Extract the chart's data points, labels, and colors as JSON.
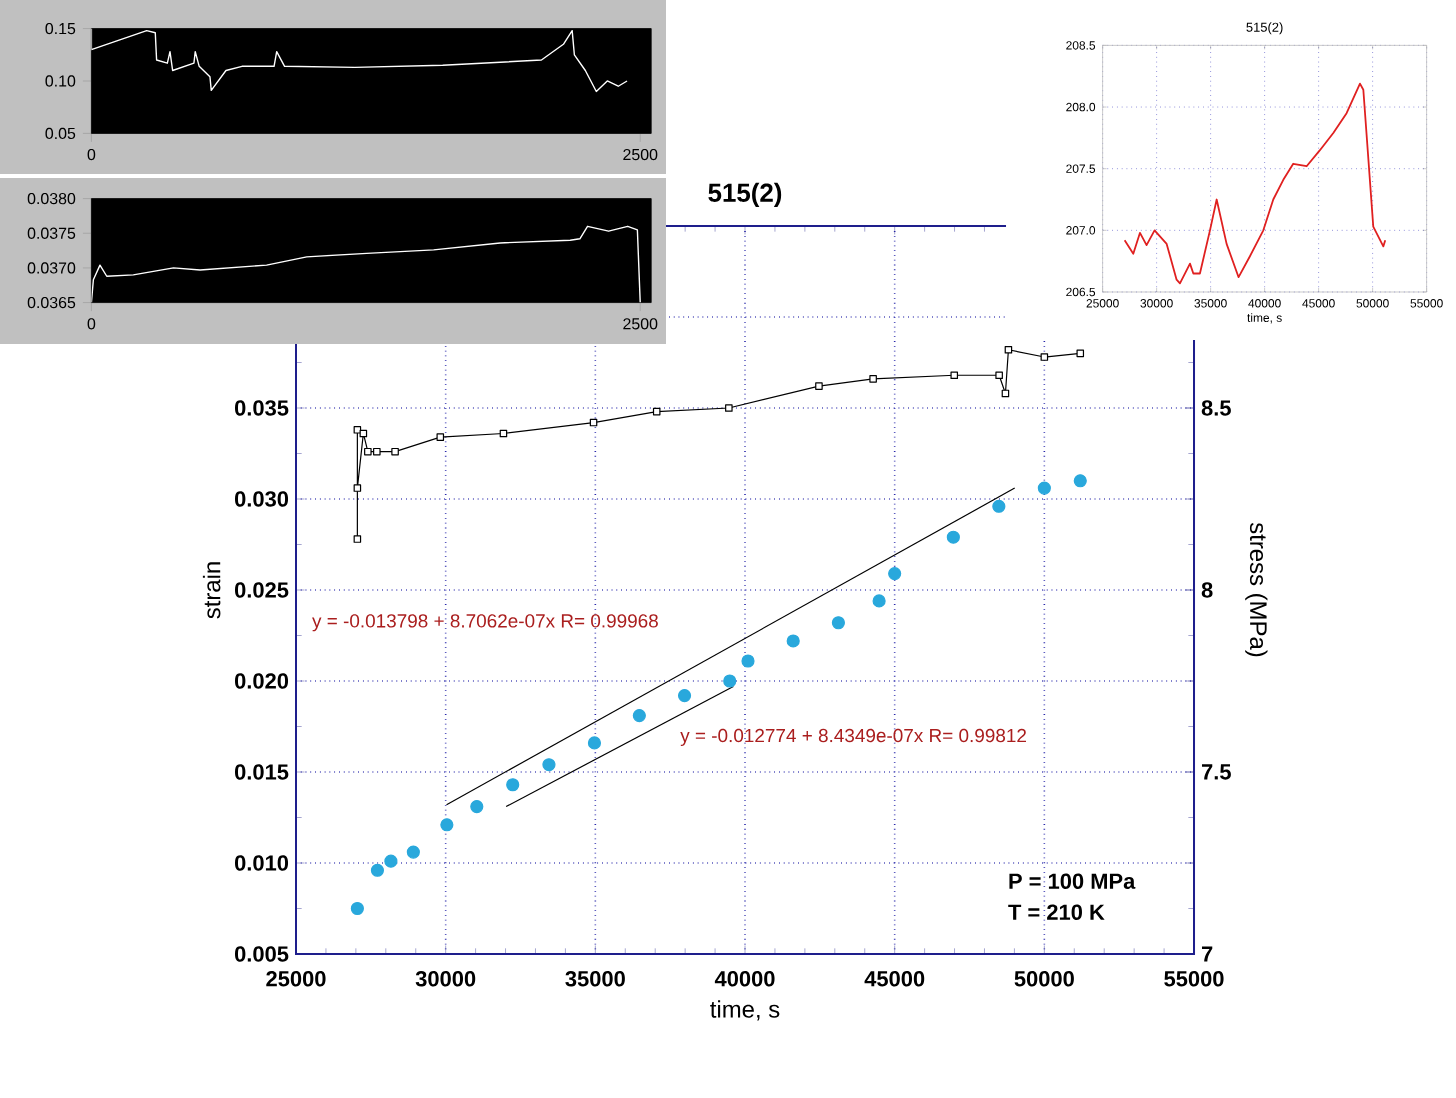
{
  "chart_data": [
    {
      "type": "line",
      "title": "515(2)",
      "xlabel": "time, s",
      "ylabel": "strain",
      "y2label": "stress (MPa)",
      "xlim": [
        25000,
        55000
      ],
      "xticks": [
        25000,
        30000,
        35000,
        40000,
        45000,
        50000,
        55000
      ],
      "ylim": [
        0.005,
        0.045
      ],
      "yticks": [
        0.005,
        {
          "value": 0.01,
          "label": "0.010"
        },
        0.015,
        {
          "value": 0.02,
          "label": "0.020"
        },
        0.025,
        {
          "value": 0.03,
          "label": "0.030"
        },
        0.035,
        {
          "value": 0.04,
          "label": null
        },
        {
          "value": 0.045,
          "label": null
        }
      ],
      "y2lim": [
        7,
        9
      ],
      "y2ticks": [
        7,
        7.5,
        8,
        8.5,
        {
          "value": 9,
          "label": null
        }
      ],
      "grid": true,
      "series": [
        {
          "type": "line",
          "axis": "y2",
          "marker": "square",
          "color": "#000000",
          "x": [
            27050,
            27050,
            27050,
            27250,
            27400,
            27700,
            28310,
            29820,
            31930,
            34940,
            37050,
            39460,
            42470,
            44280,
            46990,
            48490,
            48700,
            48800,
            50000,
            51200
          ],
          "values": [
            8.44,
            8.14,
            8.28,
            8.43,
            8.38,
            8.38,
            8.38,
            8.42,
            8.43,
            8.46,
            8.49,
            8.5,
            8.56,
            8.58,
            8.59,
            8.59,
            8.54,
            8.66,
            8.64,
            8.65
          ]
        },
        {
          "type": "scatter",
          "marker": "circle",
          "color": "#29a8dc",
          "x": [
            27050,
            27720,
            28170,
            28920,
            30040,
            31040,
            32240,
            33450,
            34970,
            36470,
            37980,
            39490,
            40100,
            41610,
            43120,
            44480,
            45000,
            46960,
            48480,
            50000,
            51200
          ],
          "values": [
            0.0075,
            0.0096,
            0.0101,
            0.0106,
            0.0121,
            0.0131,
            0.0143,
            0.0154,
            0.0166,
            0.0181,
            0.0192,
            0.02,
            0.0211,
            0.0222,
            0.0232,
            0.0244,
            0.0259,
            0.0279,
            0.0296,
            0.0306,
            0.031
          ]
        },
        {
          "type": "line",
          "color": "#000000",
          "x": [
            30030,
            49010
          ],
          "values": [
            0.0132,
            0.0306
          ]
        },
        {
          "type": "line",
          "color": "#000000",
          "x": [
            32020,
            39610
          ],
          "values": [
            0.0131,
            0.0197
          ]
        }
      ],
      "annotations": [
        "y = -0.013798 + 8.7062e-07x   R= 0.99968",
        "y = -0.012774 + 8.4349e-07x   R= 0.99812",
        "P = 100 MPa",
        "T = 210 K"
      ]
    },
    {
      "type": "line",
      "xlim": [
        0,
        2550
      ],
      "xticks": [
        0,
        2500
      ],
      "ylim": [
        0.05,
        0.15
      ],
      "yticks": [
        0.05,
        {
          "value": 0.1,
          "label": "0.10"
        },
        0.15
      ],
      "series": [
        {
          "color": "#ffffff",
          "x": [
            0,
            0,
            252,
            291,
            297,
            346,
            358,
            370,
            467,
            473,
            491,
            540,
            546,
            613,
            686,
            832,
            844,
            880,
            1200,
            1600,
            2050,
            2150,
            2190,
            2200,
            2250,
            2300,
            2350,
            2400,
            2440
          ],
          "values": [
            0.15,
            0.13,
            0.148,
            0.146,
            0.12,
            0.117,
            0.128,
            0.11,
            0.117,
            0.128,
            0.114,
            0.104,
            0.091,
            0.11,
            0.114,
            0.114,
            0.128,
            0.114,
            0.113,
            0.115,
            0.12,
            0.135,
            0.148,
            0.125,
            0.11,
            0.09,
            0.1,
            0.095,
            0.1
          ]
        }
      ]
    },
    {
      "type": "line",
      "xlim": [
        0,
        2550
      ],
      "xticks": [
        0,
        2500
      ],
      "ylim": [
        0.0365,
        0.038
      ],
      "yticks": [
        0.0365,
        {
          "value": 0.037,
          "label": "0.0370"
        },
        0.0375,
        {
          "value": 0.038,
          "label": "0.0380"
        }
      ],
      "series": [
        {
          "color": "#ffffff",
          "x": [
            0,
            9,
            39,
            70,
            191,
            374,
            495,
            798,
            981,
            1254,
            1559,
            1862,
            2181,
            2225,
            2260,
            2356,
            2443,
            2487,
            2500
          ],
          "values": [
            0.0365,
            0.03683,
            0.03704,
            0.03688,
            0.0369,
            0.037,
            0.03697,
            0.03704,
            0.03716,
            0.03721,
            0.03726,
            0.03736,
            0.0374,
            0.03742,
            0.0376,
            0.03753,
            0.0376,
            0.03755,
            0.0365
          ]
        }
      ]
    },
    {
      "type": "line",
      "title": "515(2)",
      "xlabel": "time, s",
      "xlim": [
        25000,
        55000
      ],
      "xticks": [
        25000,
        30000,
        35000,
        40000,
        45000,
        50000,
        55000
      ],
      "ylim": [
        206.5,
        208.5
      ],
      "yticks": [
        206.5,
        {
          "value": 207,
          "label": "207.0"
        },
        207.5,
        {
          "value": 208,
          "label": "208.0"
        },
        208.5
      ],
      "grid": true,
      "series": [
        {
          "color": "#e02020",
          "x": [
            27040,
            27840,
            28460,
            29070,
            29810,
            30930,
            31850,
            32160,
            33090,
            33400,
            34010,
            34940,
            35560,
            36480,
            37590,
            38640,
            39880,
            40800,
            41730,
            42650,
            43890,
            45120,
            46360,
            47590,
            48830,
            49140,
            50060,
            50990,
            51170
          ],
          "values": [
            206.92,
            206.81,
            206.98,
            206.88,
            207.0,
            206.89,
            206.6,
            206.57,
            206.73,
            206.65,
            206.65,
            207.0,
            207.25,
            206.89,
            206.62,
            206.79,
            207.0,
            207.25,
            207.41,
            207.54,
            207.52,
            207.65,
            207.79,
            207.95,
            208.19,
            208.14,
            207.03,
            206.87,
            206.92
          ]
        }
      ]
    }
  ]
}
